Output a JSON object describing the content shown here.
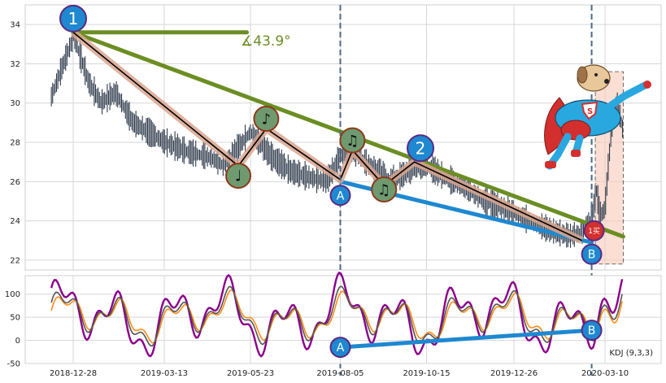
{
  "chart_data": [
    {
      "type": "line",
      "panel": "price",
      "x": [
        "2018-12-28",
        "2019-01-10",
        "2019-01-20",
        "2019-02-01",
        "2019-02-15",
        "2019-03-13",
        "2019-04-01",
        "2019-04-20",
        "2019-05-01",
        "2019-05-23",
        "2019-06-10",
        "2019-06-25",
        "2019-07-10",
        "2019-07-25",
        "2019-08-05",
        "2019-08-15",
        "2019-08-25",
        "2019-09-05",
        "2019-09-15",
        "2019-09-25",
        "2019-10-05",
        "2019-10-15",
        "2019-10-30",
        "2019-11-15",
        "2019-12-01",
        "2019-12-26",
        "2020-01-10",
        "2020-01-25",
        "2020-02-10",
        "2020-02-20",
        "2020-02-28",
        "2020-03-03",
        "2020-03-06",
        "2020-03-10",
        "2020-03-13",
        "2020-03-16",
        "2020-03-20",
        "2020-03-25"
      ],
      "values": [
        33.5,
        31.0,
        30.0,
        30.5,
        29.0,
        28.0,
        27.5,
        27.2,
        26.8,
        28.5,
        27.2,
        26.5,
        26.2,
        26.0,
        27.3,
        27.6,
        27.0,
        26.5,
        26.0,
        26.3,
        26.7,
        26.8,
        26.2,
        25.7,
        25.0,
        24.4,
        23.9,
        23.5,
        23.2,
        23.4,
        24.1,
        25.5,
        24.2,
        24.6,
        27.0,
        29.0,
        30.0,
        28.5
      ],
      "ylim": [
        21.5,
        35
      ],
      "yticks": [
        22,
        24,
        26,
        28,
        30,
        32,
        34
      ],
      "xticks": [
        "2018-12-28",
        "2019-03-13",
        "2019-05-23",
        "2019-08-05",
        "2019-10-15",
        "2019-12-26",
        "2020-03-10"
      ],
      "zigzag": {
        "x": [
          "2018-12-28",
          "2019-05-13",
          "2019-06-05",
          "2019-08-05",
          "2019-08-15",
          "2019-09-10",
          "2019-10-05",
          "2020-02-20"
        ],
        "values": [
          33.6,
          26.8,
          28.7,
          26.1,
          27.6,
          25.8,
          27.0,
          23.0
        ]
      },
      "resistance_line": {
        "x": [
          "2018-12-28",
          "2020-03-25"
        ],
        "values": [
          33.6,
          23.2
        ],
        "angle_label": "∡43.9°"
      },
      "support_line": {
        "x": [
          "2019-08-05",
          "2020-02-28"
        ],
        "values": [
          26.0,
          22.9
        ]
      },
      "vlines": [
        "2019-08-05",
        "2020-02-28"
      ],
      "highlight_box": {
        "x": [
          "2020-03-02",
          "2020-03-25"
        ],
        "y": [
          21.8,
          31.6
        ]
      },
      "markers": [
        {
          "label": "1",
          "x": "2018-12-28",
          "y": 34.3,
          "style": "blue-big"
        },
        {
          "label": "2",
          "x": "2019-10-10",
          "y": 27.7,
          "style": "blue-big"
        },
        {
          "label": "A",
          "x": "2019-08-05",
          "y": 25.3,
          "style": "blue-small"
        },
        {
          "label": "B",
          "x": "2020-02-28",
          "y": 22.3,
          "style": "blue-small"
        },
        {
          "label": "♩",
          "x": "2019-05-13",
          "y": 26.3,
          "style": "note"
        },
        {
          "label": "♪",
          "x": "2019-06-05",
          "y": 29.2,
          "style": "note"
        },
        {
          "label": "♫",
          "x": "2019-08-15",
          "y": 28.1,
          "style": "note"
        },
        {
          "label": "♫",
          "x": "2019-09-10",
          "y": 25.6,
          "style": "note"
        },
        {
          "label": "1买",
          "x": "2020-03-01",
          "y": 23.5,
          "style": "buy"
        }
      ]
    },
    {
      "type": "line",
      "panel": "indicator",
      "legend": "KDJ (9,3,3)",
      "ylim": [
        -50,
        140
      ],
      "yticks": [
        -50,
        0,
        50,
        100
      ],
      "xticks": [
        "2018-12-28",
        "2019-03-13",
        "2019-05-23",
        "2019-08-05",
        "2019-10-15",
        "2019-12-26",
        "2020-03-10"
      ],
      "series": [
        {
          "name": "J",
          "color": "#8b008b"
        },
        {
          "name": "K",
          "color": "#555555"
        },
        {
          "name": "D",
          "color": "#ff8c1a"
        }
      ],
      "divergence_line": {
        "x": [
          "2019-08-05",
          "2020-02-28"
        ],
        "values": [
          -15,
          22
        ]
      },
      "markers": [
        {
          "label": "A",
          "x": "2019-08-05",
          "y": -15
        },
        {
          "label": "B",
          "x": "2020-02-28",
          "y": 22
        }
      ]
    }
  ],
  "colors": {
    "grid": "#d7d7d7",
    "candle": "#2f3b4c",
    "zigzag": "#000000",
    "zigzag_halo": "#d9a68f",
    "resistance": "#6b8e23",
    "support": "#1e88d0",
    "marker_blue": "#1e88d0",
    "note_green": "#6f9a70",
    "buy_red": "#d32f2f",
    "highlight": "#f8c8b8"
  },
  "icons": {
    "hero": "superhero-dog-icon"
  }
}
